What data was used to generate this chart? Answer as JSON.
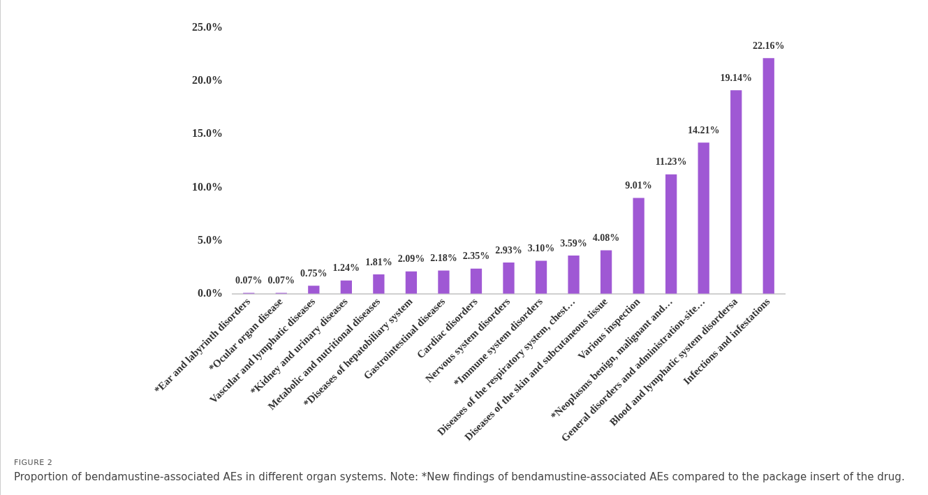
{
  "chart_data": {
    "type": "bar",
    "categories": [
      "*Ear and labyrinth disorders",
      "*Ocular organ disease",
      "Vascular and lymphatic diseases",
      "*Kidney and urinary diseases",
      "Metabolic and nutritional diseases",
      "*Diseases of hepatobiliary system",
      "Gastrointestinal diseases",
      "Cardiac disorders",
      "Nervous system disorders",
      "*Immune system disorders",
      "Diseases of the respiratory system, chest…",
      "Diseases of the skin and subcutaneous tissue",
      "Various inspection",
      "*Neoplasms benign, malignant and…",
      "General disorders and administration-site…",
      "Blood and lymphatic system disordersa",
      "Infections and infestations"
    ],
    "values": [
      0.07,
      0.07,
      0.75,
      1.24,
      1.81,
      2.09,
      2.18,
      2.35,
      2.93,
      3.1,
      3.59,
      4.08,
      9.01,
      11.23,
      14.21,
      19.14,
      22.16
    ],
    "value_labels": [
      "0.07%",
      "0.07%",
      "0.75%",
      "1.24%",
      "1.81%",
      "2.09%",
      "2.18%",
      "2.35%",
      "2.93%",
      "3.10%",
      "3.59%",
      "4.08%",
      "9.01%",
      "11.23%",
      "14.21%",
      "19.14%",
      "22.16%"
    ],
    "color": "#9f58d4",
    "ylim": [
      0,
      25
    ],
    "yticks": [
      {
        "value": 0,
        "label": "0.0%"
      },
      {
        "value": 5,
        "label": "5.0%"
      },
      {
        "value": 10,
        "label": "10.0%"
      },
      {
        "value": 15,
        "label": "15.0%"
      },
      {
        "value": 20,
        "label": "20.0%"
      },
      {
        "value": 25,
        "label": "25.0%"
      }
    ],
    "grid": false,
    "legend": false,
    "annotations": [
      "FIGURE 2",
      "Proportion of bendamustine-associated AEs in different organ systems. Note: *New findings of bendamustine-associated AEs compared to the package insert of the drug."
    ]
  }
}
